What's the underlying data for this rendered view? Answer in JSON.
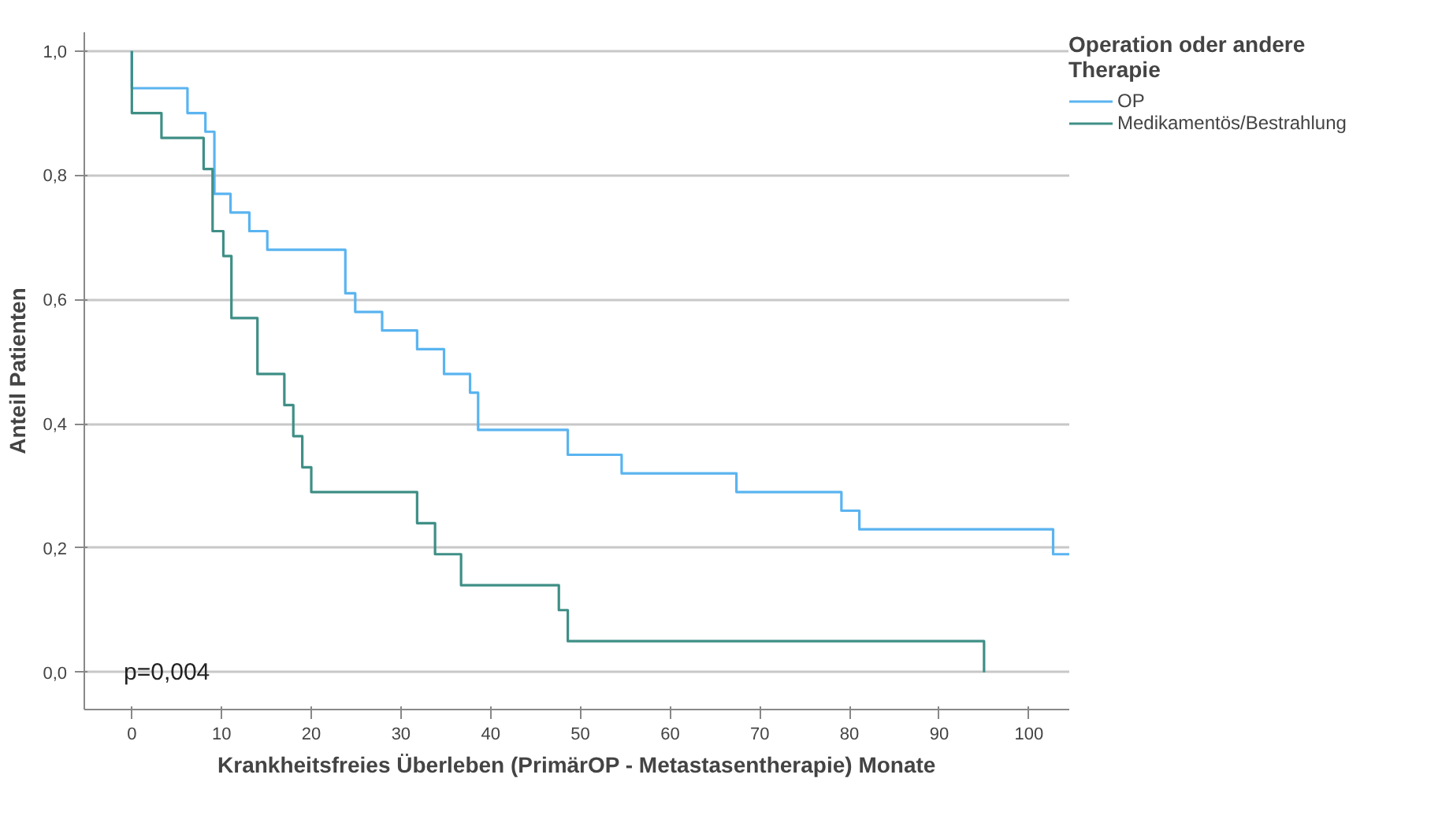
{
  "chart_data": {
    "type": "step",
    "xlabel": "Krankheitsfreies Überleben (PrimärOP - Metastasentherapie) Monate",
    "ylabel": "Anteil Patienten",
    "legend_title": "Operation oder andere Therapie",
    "series": [
      {
        "name": "OP",
        "color": "#5ab4f0",
        "x": [
          0,
          0,
          6.2,
          8.2,
          9.2,
          11,
          13.1,
          15.1,
          23.8,
          24.9,
          27.9,
          31.8,
          34.8,
          37.7,
          38.6,
          48.6,
          54.6,
          67.4,
          79.1,
          81.1,
          102.7,
          104.5
        ],
        "values": [
          1,
          0.94,
          0.9,
          0.87,
          0.77,
          0.74,
          0.71,
          0.68,
          0.61,
          0.58,
          0.55,
          0.52,
          0.48,
          0.45,
          0.39,
          0.35,
          0.32,
          0.29,
          0.26,
          0.23,
          0.19,
          0.19
        ]
      },
      {
        "name": "Medikamentös/Bestrahlung",
        "color": "#3f8f86",
        "x": [
          0,
          0,
          3.3,
          8,
          9,
          10.2,
          11.1,
          14,
          17,
          18,
          19,
          20,
          31.8,
          33.8,
          36.7,
          47.6,
          48.6,
          95
        ],
        "values": [
          1,
          0.9,
          0.86,
          0.81,
          0.71,
          0.67,
          0.57,
          0.48,
          0.43,
          0.38,
          0.33,
          0.29,
          0.24,
          0.19,
          0.14,
          0.1,
          0.05,
          0
        ]
      }
    ],
    "annotations": [
      "p=0,004"
    ],
    "xlim": [
      -5.3,
      104.5
    ],
    "ylim": [
      -0.06,
      1.03
    ],
    "xticks": [
      0,
      10,
      20,
      30,
      40,
      50,
      60,
      70,
      80,
      90,
      100
    ],
    "yticks": [
      {
        "value": 0,
        "label": "0,0"
      },
      {
        "value": 0.2,
        "label": "0,2"
      },
      {
        "value": 0.4,
        "label": "0,4"
      },
      {
        "value": 0.6,
        "label": "0,6"
      },
      {
        "value": 0.8,
        "label": "0,8"
      },
      {
        "value": 1,
        "label": "1,0"
      }
    ],
    "grid": "y",
    "legend": "top right",
    "line_style": "solid",
    "marker": "none"
  }
}
